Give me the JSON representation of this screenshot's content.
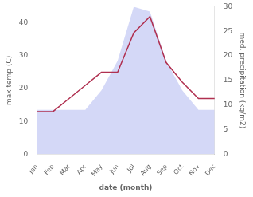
{
  "chart_data": {
    "type": "line",
    "xlabel": "date (month)",
    "ylabel": "max temp (C)",
    "y2label": "med. precipitation (kg/m2)",
    "categories": [
      "Jan",
      "Feb",
      "Mar",
      "Apr",
      "May",
      "Jun",
      "Jul",
      "Aug",
      "Sep",
      "Oct",
      "Nov",
      "Dec"
    ],
    "series": [
      {
        "type": "area",
        "color": "#b0b8f0",
        "axis": "y2",
        "values": [
          9,
          9,
          9,
          9,
          13,
          19,
          30,
          29,
          19,
          13,
          9,
          9
        ]
      },
      {
        "type": "line",
        "color": "#b03050",
        "values": [
          13,
          13,
          17,
          21,
          25,
          25,
          37,
          42,
          28,
          22,
          17,
          17
        ]
      }
    ],
    "ylim": [
      0,
      45
    ],
    "yticks": [
      0,
      10,
      20,
      30,
      40
    ],
    "y2lim": [
      0,
      30
    ],
    "y2ticks": [
      0,
      5,
      10,
      15,
      20,
      25,
      30
    ],
    "grid": false
  }
}
